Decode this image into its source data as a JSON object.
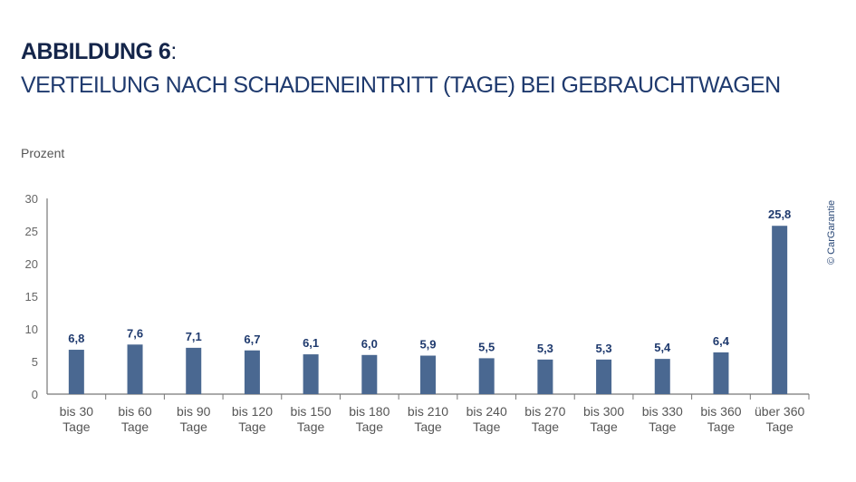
{
  "chart_data": {
    "type": "bar",
    "title_bold": "ABBILDUNG 6",
    "title_colon": ":",
    "subtitle": "VERTEILUNG NACH SCHADENEINTRITT (TAGE) BEI GEBRAUCHTWAGEN",
    "ylabel": "Prozent",
    "xlabel": "",
    "ylim": [
      0,
      30
    ],
    "yticks": [
      "0",
      "5",
      "10",
      "15",
      "20",
      "25",
      "30"
    ],
    "categories": [
      [
        "bis 30",
        "Tage"
      ],
      [
        "bis 60",
        "Tage"
      ],
      [
        "bis 90",
        "Tage"
      ],
      [
        "bis 120",
        "Tage"
      ],
      [
        "bis 150",
        "Tage"
      ],
      [
        "bis 180",
        "Tage"
      ],
      [
        "bis 210",
        "Tage"
      ],
      [
        "bis 240",
        "Tage"
      ],
      [
        "bis 270",
        "Tage"
      ],
      [
        "bis 300",
        "Tage"
      ],
      [
        "bis 330",
        "Tage"
      ],
      [
        "bis 360",
        "Tage"
      ],
      [
        "über 360",
        "Tage"
      ]
    ],
    "values": [
      6.8,
      7.6,
      7.1,
      6.7,
      6.1,
      6.0,
      5.9,
      5.5,
      5.3,
      5.3,
      5.4,
      6.4,
      25.8
    ],
    "data_labels": [
      "6,8",
      "7,6",
      "7,1",
      "6,7",
      "6,1",
      "6,0",
      "5,9",
      "5,5",
      "5,3",
      "5,3",
      "5,4",
      "6,4",
      "25,8"
    ],
    "grid": false,
    "legend": "none",
    "bar_color": "#4a6891",
    "label_color": "#1f3a6e"
  },
  "copyright": "© CarGarantie"
}
